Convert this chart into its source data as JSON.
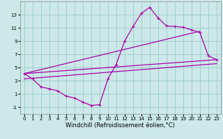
{
  "xlabel": "Windchill (Refroidissement éolien,°C)",
  "bg_color": "#cce8e8",
  "line_color": "#aa00aa",
  "grid_color": "#99cccc",
  "xlim": [
    -0.5,
    23.5
  ],
  "ylim": [
    -2,
    15
  ],
  "xticks": [
    0,
    1,
    2,
    3,
    4,
    5,
    6,
    7,
    8,
    9,
    10,
    11,
    12,
    13,
    14,
    15,
    16,
    17,
    18,
    19,
    20,
    21,
    22,
    23
  ],
  "yticks": [
    -1,
    1,
    3,
    5,
    7,
    9,
    11,
    13
  ],
  "curve1_x": [
    0,
    1,
    2,
    3,
    4,
    5,
    6,
    7,
    8,
    9,
    10,
    11,
    12,
    13,
    14,
    15,
    16,
    17,
    18,
    19,
    20,
    21,
    22,
    23
  ],
  "curve1_y": [
    4.1,
    3.3,
    2.1,
    1.8,
    1.5,
    0.7,
    0.4,
    -0.2,
    -0.7,
    -0.6,
    3.3,
    5.5,
    9.0,
    11.2,
    13.2,
    14.1,
    12.5,
    11.3,
    11.2,
    11.1,
    10.7,
    10.3,
    6.8,
    6.2
  ],
  "line1_x": [
    0,
    23
  ],
  "line1_y": [
    4.1,
    6.2
  ],
  "line2_x": [
    0,
    21
  ],
  "line2_y": [
    4.1,
    10.5
  ],
  "line3_x": [
    0,
    23
  ],
  "line3_y": [
    3.3,
    5.6
  ],
  "tick_fontsize": 5,
  "label_fontsize": 6
}
